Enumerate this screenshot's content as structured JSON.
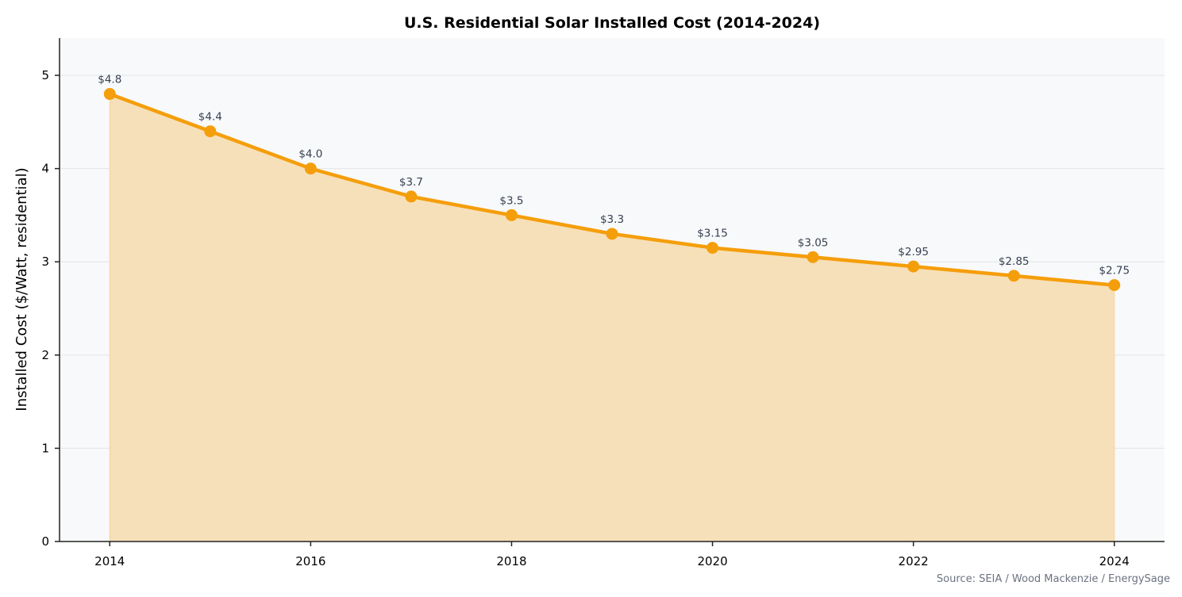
{
  "chart_data": {
    "type": "area",
    "title": "U.S. Residential Solar Installed Cost (2014-2024)",
    "xlabel": "",
    "ylabel": "Installed Cost ($/Watt, residential)",
    "x": [
      2014,
      2015,
      2016,
      2017,
      2018,
      2019,
      2020,
      2021,
      2022,
      2023,
      2024
    ],
    "values": [
      4.8,
      4.4,
      4.0,
      3.7,
      3.5,
      3.3,
      3.15,
      3.05,
      2.95,
      2.85,
      2.75
    ],
    "data_labels": [
      "$4.8",
      "$4.4",
      "$4.0",
      "$3.7",
      "$3.5",
      "$3.3",
      "$3.15",
      "$3.05",
      "$2.95",
      "$2.85",
      "$2.75"
    ],
    "xlim": [
      2013.5,
      2024.5
    ],
    "ylim": [
      0,
      5.4
    ],
    "xticks": [
      "2014",
      "2016",
      "2018",
      "2020",
      "2022",
      "2024"
    ],
    "yticks": [
      "0",
      "1",
      "2",
      "3",
      "4",
      "5"
    ],
    "grid": "horizontal",
    "source": "Source: SEIA / Wood Mackenzie / EnergySage",
    "colors": {
      "line": "#f59e0b",
      "fill": "#f6e0b9",
      "plot_bg": "#f8f9fb",
      "label": "#374151",
      "source": "#6b7280"
    }
  }
}
